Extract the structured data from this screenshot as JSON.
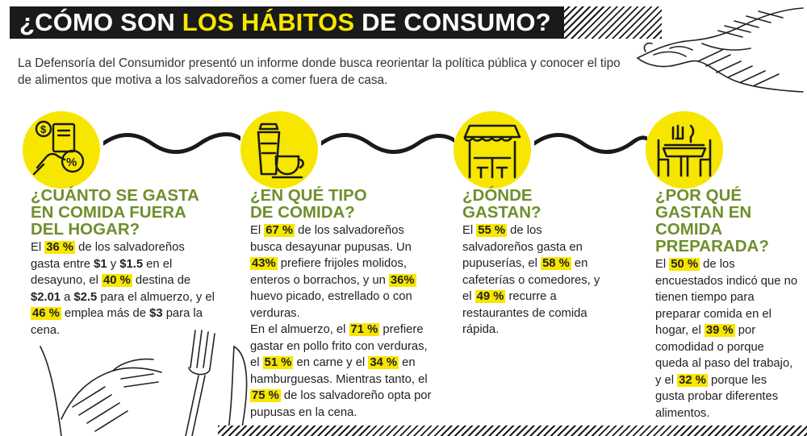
{
  "title": {
    "pre": "¿CÓMO SON ",
    "highlight": "LOS HÁBITOS",
    "post": " DE CONSUMO?"
  },
  "intro": "La Defensoría del Consumidor presentó un informe donde busca reorientar la política pública y conocer el tipo de alimentos que motiva a los salvadoreños a comer fuera de casa.",
  "icons": [
    "money-card-icon",
    "coffee-icon",
    "restaurant-icon",
    "dining-table-icon"
  ],
  "colors": {
    "accent": "#f7e600",
    "heading": "#6e8f2c",
    "title_bg": "#1a1a1a"
  },
  "sections": [
    {
      "heading": "¿CUÁNTO SE GASTA EN COMIDA FUERA DEL HOGAR?",
      "p": [
        {
          "t": "El "
        },
        {
          "h": "36 %"
        },
        {
          "t": " de los salvadoreños gasta entre "
        },
        {
          "b": "$1"
        },
        {
          "t": " y "
        },
        {
          "b": "$1.5"
        },
        {
          "t": " en el desayuno, el "
        },
        {
          "h": "40 %"
        },
        {
          "t": " destina de "
        },
        {
          "b": "$2.01"
        },
        {
          "t": " a "
        },
        {
          "b": "$2.5"
        },
        {
          "t": " para el almuerzo, y el "
        },
        {
          "h": "46 %"
        },
        {
          "t": " emplea más de "
        },
        {
          "b": "$3"
        },
        {
          "t": " para la cena."
        }
      ]
    },
    {
      "heading": "¿EN QUÉ TIPO DE COMIDA?",
      "p": [
        {
          "t": "El "
        },
        {
          "h": "67 %"
        },
        {
          "t": " de los salvadoreños busca desayunar pupusas.  Un "
        },
        {
          "h": "43%"
        },
        {
          "t": " prefiere frijoles molidos, enteros o borrachos, y un "
        },
        {
          "h": "36%"
        },
        {
          "t": " huevo picado, estrellado o con verduras."
        },
        {
          "br": true
        },
        {
          "t": "En el almuerzo, el "
        },
        {
          "h": "71 %"
        },
        {
          "t": "  prefiere gastar en pollo frito con verduras, el "
        },
        {
          "h": "51 %"
        },
        {
          "t": " en carne y el "
        },
        {
          "h": "34 %"
        },
        {
          "t": " en hamburguesas. Mientras tanto, el "
        },
        {
          "h": "75 %"
        },
        {
          "t": " de los salvadoreño opta por pupusas en la cena."
        }
      ]
    },
    {
      "heading": "¿DÓNDE GASTAN?",
      "p": [
        {
          "t": "El "
        },
        {
          "h": "55 %"
        },
        {
          "t": " de los salvadoreños gasta en pupuserías, el "
        },
        {
          "h": "58 %"
        },
        {
          "t": " en cafeterías o comedores, y el "
        },
        {
          "h": "49 %"
        },
        {
          "t": " recurre a restaurantes de comida rápida."
        }
      ]
    },
    {
      "heading": "¿POR QUÉ GASTAN EN COMIDA PREPARADA?",
      "p": [
        {
          "t": "El "
        },
        {
          "h": "50 %"
        },
        {
          "t": " de los encuestados indicó que no tienen tiempo para preparar comida en el hogar, el "
        },
        {
          "h": "39 %"
        },
        {
          "t": " por comodidad o porque queda al paso del trabajo, y el "
        },
        {
          "h": "32 %"
        },
        {
          "t": " porque les gusta probar diferentes alimentos."
        }
      ]
    }
  ]
}
